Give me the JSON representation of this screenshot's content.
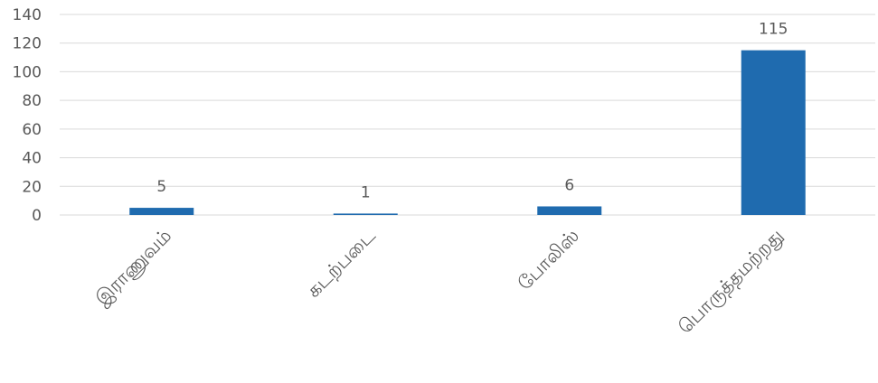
{
  "chart_data": {
    "type": "bar",
    "categories": [
      "இராணுவம்",
      "கடற்படை",
      "போலிஸ்",
      "பொருத்தமற்றது"
    ],
    "values": [
      5,
      1,
      6,
      115
    ],
    "data_labels": [
      "5",
      "1",
      "6",
      "115"
    ],
    "title": "",
    "xlabel": "",
    "ylabel": "",
    "ylim": [
      0,
      140
    ],
    "yticks": [
      0,
      20,
      40,
      60,
      80,
      100,
      120,
      140
    ],
    "grid": true,
    "legend": "none",
    "bar_color": "#1F6BAF",
    "grid_color": "#D9D9D9",
    "text_color": "#595959"
  }
}
